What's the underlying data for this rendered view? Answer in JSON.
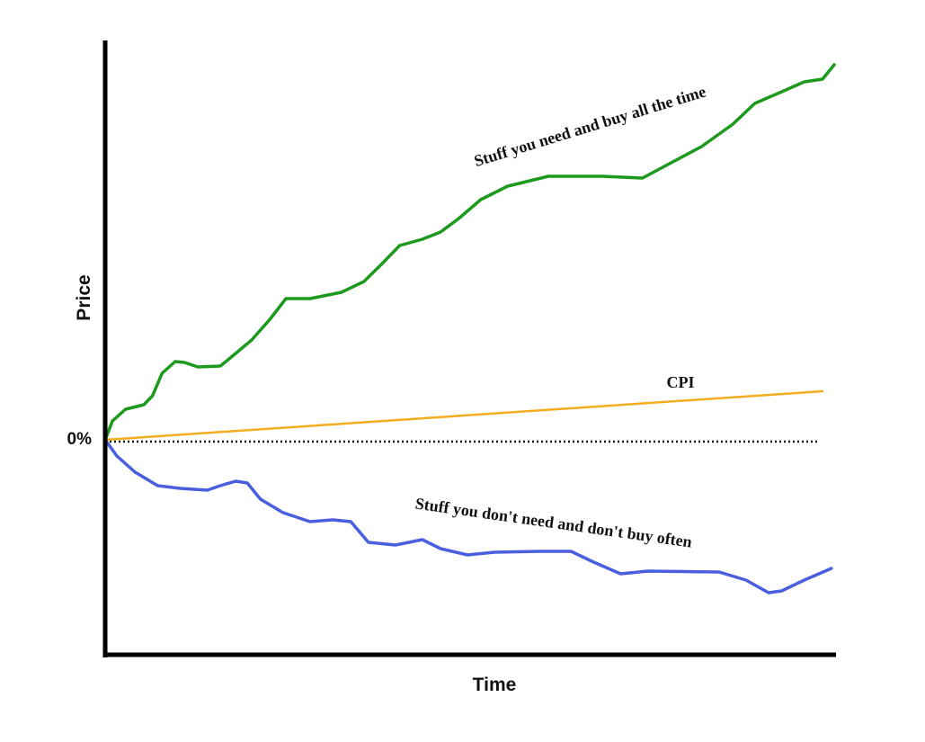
{
  "chart_data": {
    "type": "line",
    "x_label": "Time",
    "y_label": "Price",
    "xlim": [
      0,
      100
    ],
    "ylim": [
      -95.6,
      177.6
    ],
    "yticks": [
      {
        "value": 0,
        "label": "0%"
      }
    ],
    "grid": true,
    "series": [
      {
        "name": "Stuff you need and buy all the time",
        "color": "#1d9a1d",
        "x": [
          0,
          1,
          2.8,
          5.3,
          6.5,
          7.8,
          9.6,
          10.9,
          12.7,
          15.8,
          17.6,
          20.1,
          22.6,
          24.8,
          28.1,
          32.4,
          35.5,
          38,
          40.4,
          43.5,
          46,
          48.5,
          51.5,
          55.2,
          60.8,
          68.2,
          73.7,
          77.4,
          81.8,
          86.1,
          89.1,
          92.8,
          95.9,
          98.4,
          100
        ],
        "values": [
          0,
          8.4,
          13.6,
          15.6,
          19.6,
          29.6,
          34.8,
          34.4,
          32.4,
          32.8,
          37.6,
          44.4,
          53.6,
          62.8,
          62.8,
          65.6,
          70.4,
          78.4,
          86.4,
          89.2,
          92.4,
          98.4,
          106.8,
          112.8,
          117.2,
          117.2,
          116.4,
          122.8,
          130.4,
          140.4,
          149.6,
          154.8,
          159.2,
          160.4,
          166.8
        ]
      },
      {
        "name": "CPI",
        "color": "#f2ac1e",
        "x": [
          0,
          98.4
        ],
        "values": [
          0,
          21.6
        ]
      },
      {
        "name": "Stuff you don't need and don't buy often",
        "color": "#4a5fe0",
        "x": [
          0,
          1.6,
          4.1,
          7.2,
          10.3,
          14,
          15.8,
          17.9,
          19.5,
          21.3,
          24.4,
          28.1,
          31.2,
          33.7,
          36.1,
          39.8,
          43.5,
          46,
          49.7,
          53.4,
          59.6,
          63.9,
          67,
          70.7,
          74.4,
          84.2,
          87.9,
          91,
          92.8,
          95.9,
          99.6
        ],
        "values": [
          0,
          -7.2,
          -14.4,
          -20.4,
          -21.6,
          -22.4,
          -20.4,
          -18.4,
          -19.2,
          -26.4,
          -32.4,
          -36.4,
          -35.6,
          -36.4,
          -45.6,
          -46.8,
          -44.4,
          -48.4,
          -51.2,
          -50,
          -49.6,
          -49.6,
          -54.4,
          -59.6,
          -58.4,
          -58.8,
          -62.4,
          -68,
          -67.2,
          -62.4,
          -57.2
        ]
      }
    ]
  }
}
